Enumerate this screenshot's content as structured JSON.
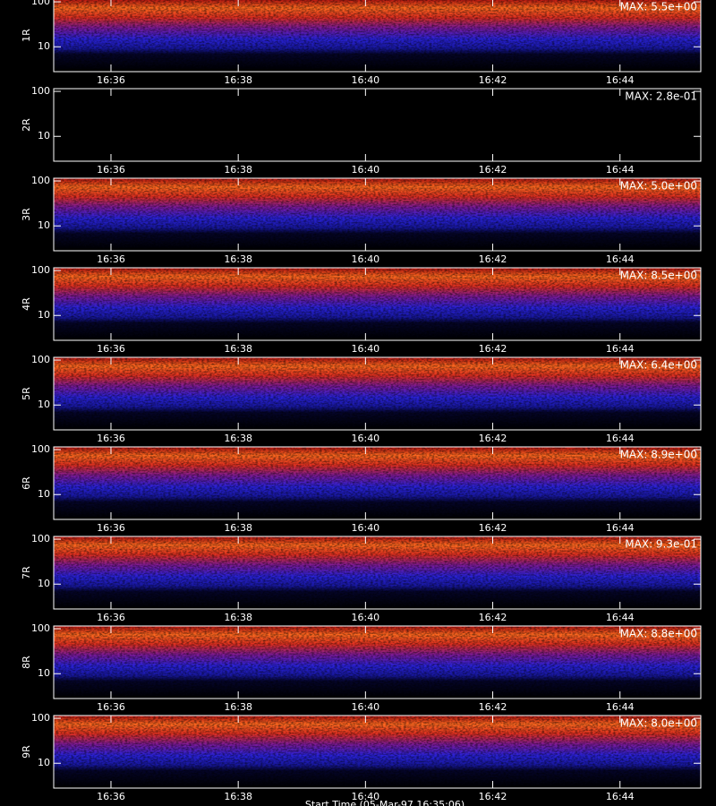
{
  "chart_data": [
    {
      "type": "heatmap",
      "ylabel": "1R",
      "max_label": "MAX: 5.5e+00",
      "ylog": true,
      "ylim": [
        2.8,
        115
      ],
      "yticks": [
        10,
        100
      ],
      "xlim": [
        35.1,
        45.27
      ],
      "xticks": [
        {
          "value": 36,
          "label": "16:36"
        },
        {
          "value": 38,
          "label": "16:38"
        },
        {
          "value": 40,
          "label": "16:40"
        },
        {
          "value": 42,
          "label": "16:42"
        },
        {
          "value": 44,
          "label": "16:44"
        }
      ]
    },
    {
      "type": "heatmap",
      "ylabel": "2R",
      "max_label": "MAX: 2.8e-01",
      "ylog": true,
      "ylim": [
        2.8,
        115
      ],
      "yticks": [
        10,
        100
      ],
      "xlim": [
        35.1,
        45.27
      ],
      "xticks": [
        {
          "value": 36,
          "label": "16:36"
        },
        {
          "value": 38,
          "label": "16:38"
        },
        {
          "value": 40,
          "label": "16:40"
        },
        {
          "value": 42,
          "label": "16:42"
        },
        {
          "value": 44,
          "label": "16:44"
        }
      ]
    },
    {
      "type": "heatmap",
      "ylabel": "3R",
      "max_label": "MAX: 5.0e+00",
      "ylog": true,
      "ylim": [
        2.8,
        115
      ],
      "yticks": [
        10,
        100
      ],
      "xlim": [
        35.1,
        45.27
      ],
      "xticks": [
        {
          "value": 36,
          "label": "16:36"
        },
        {
          "value": 38,
          "label": "16:38"
        },
        {
          "value": 40,
          "label": "16:40"
        },
        {
          "value": 42,
          "label": "16:42"
        },
        {
          "value": 44,
          "label": "16:44"
        }
      ]
    },
    {
      "type": "heatmap",
      "ylabel": "4R",
      "max_label": "MAX: 8.5e+00",
      "ylog": true,
      "ylim": [
        2.8,
        115
      ],
      "yticks": [
        10,
        100
      ],
      "xlim": [
        35.1,
        45.27
      ],
      "xticks": [
        {
          "value": 36,
          "label": "16:36"
        },
        {
          "value": 38,
          "label": "16:38"
        },
        {
          "value": 40,
          "label": "16:40"
        },
        {
          "value": 42,
          "label": "16:42"
        },
        {
          "value": 44,
          "label": "16:44"
        }
      ]
    },
    {
      "type": "heatmap",
      "ylabel": "5R",
      "max_label": "MAX: 6.4e+00",
      "ylog": true,
      "ylim": [
        2.8,
        115
      ],
      "yticks": [
        10,
        100
      ],
      "xlim": [
        35.1,
        45.27
      ],
      "xticks": [
        {
          "value": 36,
          "label": "16:36"
        },
        {
          "value": 38,
          "label": "16:38"
        },
        {
          "value": 40,
          "label": "16:40"
        },
        {
          "value": 42,
          "label": "16:42"
        },
        {
          "value": 44,
          "label": "16:44"
        }
      ]
    },
    {
      "type": "heatmap",
      "ylabel": "6R",
      "max_label": "MAX: 8.9e+00",
      "ylog": true,
      "ylim": [
        2.8,
        115
      ],
      "yticks": [
        10,
        100
      ],
      "xlim": [
        35.1,
        45.27
      ],
      "xticks": [
        {
          "value": 36,
          "label": "16:36"
        },
        {
          "value": 38,
          "label": "16:38"
        },
        {
          "value": 40,
          "label": "16:40"
        },
        {
          "value": 42,
          "label": "16:42"
        },
        {
          "value": 44,
          "label": "16:44"
        }
      ]
    },
    {
      "type": "heatmap",
      "ylabel": "7R",
      "max_label": "MAX: 9.3e-01",
      "ylog": true,
      "ylim": [
        2.8,
        115
      ],
      "yticks": [
        10,
        100
      ],
      "xlim": [
        35.1,
        45.27
      ],
      "xticks": [
        {
          "value": 36,
          "label": "16:36"
        },
        {
          "value": 38,
          "label": "16:38"
        },
        {
          "value": 40,
          "label": "16:40"
        },
        {
          "value": 42,
          "label": "16:42"
        },
        {
          "value": 44,
          "label": "16:44"
        }
      ]
    },
    {
      "type": "heatmap",
      "ylabel": "8R",
      "max_label": "MAX: 8.8e+00",
      "ylog": true,
      "ylim": [
        2.8,
        115
      ],
      "yticks": [
        10,
        100
      ],
      "xlim": [
        35.1,
        45.27
      ],
      "xticks": [
        {
          "value": 36,
          "label": "16:36"
        },
        {
          "value": 38,
          "label": "16:38"
        },
        {
          "value": 40,
          "label": "16:40"
        },
        {
          "value": 42,
          "label": "16:42"
        },
        {
          "value": 44,
          "label": "16:44"
        }
      ]
    },
    {
      "type": "heatmap",
      "ylabel": "9R",
      "max_label": "MAX: 8.0e+00",
      "ylog": true,
      "ylim": [
        2.8,
        115
      ],
      "yticks": [
        10,
        100
      ],
      "xlim": [
        35.1,
        45.27
      ],
      "xticks": [
        {
          "value": 36,
          "label": "16:36"
        },
        {
          "value": 38,
          "label": "16:38"
        },
        {
          "value": 40,
          "label": "16:40"
        },
        {
          "value": 42,
          "label": "16:42"
        },
        {
          "value": 44,
          "label": "16:44"
        }
      ]
    }
  ],
  "footer": "Start Time (05-Mar-97 16:35:06)"
}
